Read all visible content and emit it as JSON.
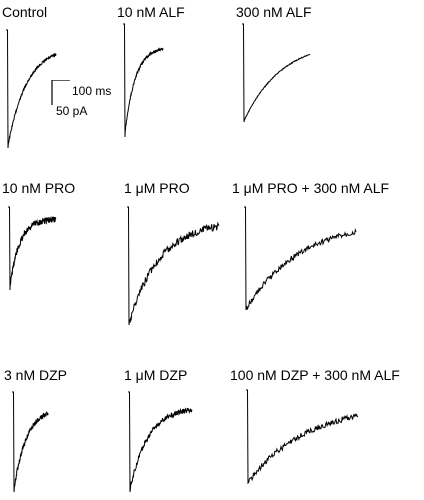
{
  "panels": [
    {
      "id": "control",
      "label": "Control",
      "tau": 0.38,
      "noise": 0.01,
      "end": 0.86
    },
    {
      "id": "alf10",
      "label": "10 nM ALF",
      "tau": 0.26,
      "noise": 0.012,
      "end": 0.8
    },
    {
      "id": "alf300",
      "label": "300 nM ALF",
      "tau": 0.55,
      "noise": 0.005,
      "end": 0.83
    },
    {
      "id": "pro10",
      "label": "10 nM PRO",
      "tau": 0.2,
      "noise": 0.04,
      "end": 0.86
    },
    {
      "id": "pro1um",
      "label": "1 μM PRO",
      "tau": 0.33,
      "noise": 0.03,
      "end": 0.88
    },
    {
      "id": "pro1um_alf300",
      "label": "1 μM PRO + 300 nM ALF",
      "tau": 0.48,
      "noise": 0.025,
      "end": 0.87
    },
    {
      "id": "dzp3",
      "label": "3 nM DZP",
      "tau": 0.36,
      "noise": 0.025,
      "end": 0.85
    },
    {
      "id": "dzp1um",
      "label": "1 μM DZP",
      "tau": 0.28,
      "noise": 0.025,
      "end": 0.85
    },
    {
      "id": "dzp100_alf300",
      "label": "100 nM DZP + 300 nM ALF",
      "tau": 0.52,
      "noise": 0.03,
      "end": 0.85
    }
  ],
  "scale_bar": {
    "time_label": "100 ms",
    "current_label": "50 pA"
  },
  "chart_data": {
    "type": "line",
    "title": "",
    "series": [
      {
        "name": "Control",
        "peak_norm": -1.0,
        "decay_tau_norm": 0.38
      },
      {
        "name": "10 nM ALF",
        "peak_norm": -1.0,
        "decay_tau_norm": 0.26
      },
      {
        "name": "300 nM ALF",
        "peak_norm": -1.0,
        "decay_tau_norm": 0.55
      },
      {
        "name": "10 nM PRO",
        "peak_norm": -1.0,
        "decay_tau_norm": 0.2
      },
      {
        "name": "1 μM PRO",
        "peak_norm": -1.0,
        "decay_tau_norm": 0.33
      },
      {
        "name": "1 μM PRO + 300 nM ALF",
        "peak_norm": -1.0,
        "decay_tau_norm": 0.48
      },
      {
        "name": "3 nM DZP",
        "peak_norm": -1.0,
        "decay_tau_norm": 0.36
      },
      {
        "name": "1 μM DZP",
        "peak_norm": -1.0,
        "decay_tau_norm": 0.28
      },
      {
        "name": "100 nM DZP + 300 nM ALF",
        "peak_norm": -1.0,
        "decay_tau_norm": 0.52
      }
    ],
    "xlabel": "",
    "ylabel": "",
    "grid": false,
    "legend": "none",
    "scale_bar": {
      "x": "100 ms",
      "y": "50 pA"
    }
  }
}
